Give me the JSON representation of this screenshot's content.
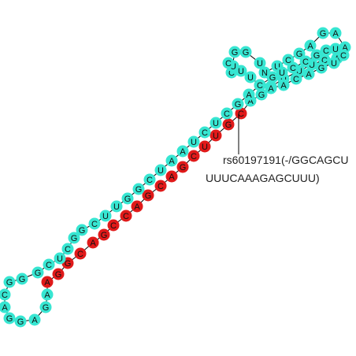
{
  "colors": {
    "normal_base": "#37e6d2",
    "variant_base": "#e01a1a",
    "backbone": "#000000",
    "background": "#ffffff"
  },
  "annotation": {
    "line1": "rs60197191(-/GGCAGCU",
    "line2": "UUUCAAAGAGCUUU)"
  },
  "sequence": {
    "strand_5p": "GGCAGGGCUCGGCUUGGCUAAUCUCGAAGUCCGCUGGUCUGACUAAUCUAA",
    "strand_3p": "CCUUUCGAAACUUUGCAGUCGCUUGAGAGCUCCAAGGAGCCCAGACUUU",
    "hairpin_loop": "AAUCUUU"
  },
  "bases": [
    {
      "letter": "C",
      "type": "normal"
    },
    {
      "letter": "G",
      "type": "normal"
    },
    {
      "letter": "G",
      "type": "normal"
    },
    {
      "letter": "U",
      "type": "normal"
    },
    {
      "letter": "N",
      "type": "normal"
    },
    {
      "letter": "U",
      "type": "normal"
    },
    {
      "letter": "C",
      "type": "normal"
    },
    {
      "letter": "G",
      "type": "normal"
    },
    {
      "letter": "A",
      "type": "normal"
    },
    {
      "letter": "G",
      "type": "normal"
    },
    {
      "letter": "A",
      "type": "normal"
    },
    {
      "letter": "A",
      "type": "normal"
    },
    {
      "letter": "A",
      "type": "normal"
    },
    {
      "letter": "C",
      "type": "normal"
    },
    {
      "letter": "U",
      "type": "normal"
    },
    {
      "letter": "U",
      "type": "normal"
    },
    {
      "letter": "U",
      "type": "normal"
    },
    {
      "letter": "C",
      "type": "normal"
    },
    {
      "letter": "G",
      "type": "normal"
    },
    {
      "letter": "A",
      "type": "normal"
    },
    {
      "letter": "C",
      "type": "variant"
    },
    {
      "letter": "G",
      "type": "variant"
    },
    {
      "letter": "U",
      "type": "variant"
    },
    {
      "letter": "U",
      "type": "variant"
    },
    {
      "letter": "C",
      "type": "variant"
    },
    {
      "letter": "G",
      "type": "variant"
    },
    {
      "letter": "A",
      "type": "variant"
    },
    {
      "letter": "C",
      "type": "variant"
    },
    {
      "letter": "G",
      "type": "variant"
    },
    {
      "letter": "A",
      "type": "variant"
    },
    {
      "letter": "C",
      "type": "variant"
    },
    {
      "letter": "C",
      "type": "variant"
    },
    {
      "letter": "G",
      "type": "variant"
    },
    {
      "letter": "A",
      "type": "variant"
    },
    {
      "letter": "C",
      "type": "variant"
    },
    {
      "letter": "G",
      "type": "variant"
    },
    {
      "letter": "G",
      "type": "variant"
    },
    {
      "letter": "A",
      "type": "variant"
    },
    {
      "letter": "A",
      "type": "normal"
    },
    {
      "letter": "G",
      "type": "normal"
    },
    {
      "letter": "A",
      "type": "normal"
    },
    {
      "letter": "G",
      "type": "normal"
    },
    {
      "letter": "G",
      "type": "normal"
    },
    {
      "letter": "A",
      "type": "normal"
    },
    {
      "letter": "C",
      "type": "normal"
    },
    {
      "letter": "G",
      "type": "normal"
    },
    {
      "letter": "G",
      "type": "normal"
    },
    {
      "letter": "G",
      "type": "normal"
    },
    {
      "letter": "C",
      "type": "normal"
    },
    {
      "letter": "U",
      "type": "normal"
    },
    {
      "letter": "C",
      "type": "normal"
    },
    {
      "letter": "G",
      "type": "normal"
    },
    {
      "letter": "G",
      "type": "normal"
    },
    {
      "letter": "C",
      "type": "normal"
    },
    {
      "letter": "U",
      "type": "normal"
    },
    {
      "letter": "U",
      "type": "normal"
    },
    {
      "letter": "G",
      "type": "normal"
    },
    {
      "letter": "G",
      "type": "normal"
    },
    {
      "letter": "C",
      "type": "normal"
    },
    {
      "letter": "U",
      "type": "normal"
    },
    {
      "letter": "A",
      "type": "normal"
    },
    {
      "letter": "A",
      "type": "normal"
    },
    {
      "letter": "U",
      "type": "normal"
    },
    {
      "letter": "C",
      "type": "normal"
    },
    {
      "letter": "U",
      "type": "normal"
    },
    {
      "letter": "C",
      "type": "normal"
    },
    {
      "letter": "G",
      "type": "normal"
    },
    {
      "letter": "A",
      "type": "normal"
    },
    {
      "letter": "A",
      "type": "normal"
    },
    {
      "letter": "G",
      "type": "normal"
    },
    {
      "letter": "U",
      "type": "normal"
    },
    {
      "letter": "C",
      "type": "normal"
    },
    {
      "letter": "C",
      "type": "normal"
    },
    {
      "letter": "G",
      "type": "normal"
    },
    {
      "letter": "C",
      "type": "normal"
    },
    {
      "letter": "U",
      "type": "normal"
    },
    {
      "letter": "C",
      "type": "normal"
    },
    {
      "letter": "U",
      "type": "normal"
    },
    {
      "letter": "G",
      "type": "normal"
    },
    {
      "letter": "A",
      "type": "normal"
    },
    {
      "letter": "C",
      "type": "normal"
    },
    {
      "letter": "A",
      "type": "normal"
    },
    {
      "letter": "A",
      "type": "normal"
    },
    {
      "letter": "C",
      "type": "normal"
    },
    {
      "letter": "U",
      "type": "normal"
    },
    {
      "letter": "U",
      "type": "normal"
    },
    {
      "letter": "U",
      "type": "normal"
    },
    {
      "letter": "C",
      "type": "normal"
    }
  ]
}
